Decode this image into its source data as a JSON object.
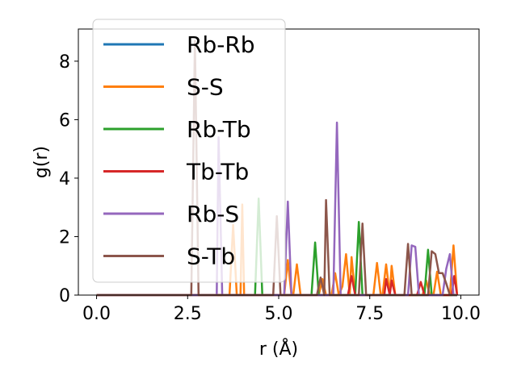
{
  "chart_data": {
    "type": "line",
    "xlabel": "r (Å)",
    "ylabel": "g(r)",
    "xlim": [
      -0.5,
      10.5
    ],
    "ylim": [
      0,
      9.1
    ],
    "xticks": [
      0.0,
      2.5,
      5.0,
      7.5,
      10.0
    ],
    "xtick_labels": [
      "0.0",
      "2.5",
      "5.0",
      "7.5",
      "10.0"
    ],
    "yticks": [
      0,
      2,
      4,
      6,
      8
    ],
    "ytick_labels": [
      "0",
      "2",
      "4",
      "6",
      "8"
    ],
    "grid": false,
    "legend_position": "upper-left",
    "series": [
      {
        "name": "Rb-Rb",
        "color": "#1f77b4",
        "points": [
          [
            0,
            0
          ],
          [
            9.9,
            0
          ]
        ]
      },
      {
        "name": "S-S",
        "color": "#ff7f0e",
        "points": [
          [
            0,
            0
          ],
          [
            3.65,
            0
          ],
          [
            3.75,
            2.4
          ],
          [
            3.85,
            0
          ],
          [
            3.95,
            0
          ],
          [
            4.0,
            3.1
          ],
          [
            4.05,
            0
          ],
          [
            5.15,
            0
          ],
          [
            5.25,
            1.2
          ],
          [
            5.35,
            0
          ],
          [
            5.4,
            0
          ],
          [
            5.5,
            1.05
          ],
          [
            5.6,
            0
          ],
          [
            6.1,
            0
          ],
          [
            6.2,
            0.55
          ],
          [
            6.3,
            0
          ],
          [
            6.45,
            0
          ],
          [
            6.55,
            0.75
          ],
          [
            6.65,
            0
          ],
          [
            6.75,
            0.3
          ],
          [
            6.85,
            1.4
          ],
          [
            6.95,
            0
          ],
          [
            7.0,
            1.3
          ],
          [
            7.1,
            0
          ],
          [
            7.6,
            0
          ],
          [
            7.7,
            1.1
          ],
          [
            7.8,
            0
          ],
          [
            7.85,
            0
          ],
          [
            7.95,
            1.05
          ],
          [
            8.05,
            0
          ],
          [
            8.1,
            1.0
          ],
          [
            8.2,
            0
          ],
          [
            8.95,
            0
          ],
          [
            9.05,
            0.5
          ],
          [
            9.15,
            0
          ],
          [
            9.25,
            0
          ],
          [
            9.35,
            0.8
          ],
          [
            9.45,
            0
          ],
          [
            9.7,
            0
          ],
          [
            9.8,
            1.7
          ],
          [
            9.9,
            0
          ]
        ]
      },
      {
        "name": "Rb-Tb",
        "color": "#2ca02c",
        "points": [
          [
            0,
            0
          ],
          [
            4.35,
            0
          ],
          [
            4.45,
            3.3
          ],
          [
            4.55,
            0
          ],
          [
            5.9,
            0
          ],
          [
            6.0,
            1.8
          ],
          [
            6.1,
            0
          ],
          [
            7.1,
            0
          ],
          [
            7.2,
            2.5
          ],
          [
            7.3,
            0
          ],
          [
            9.0,
            0
          ],
          [
            9.1,
            1.55
          ],
          [
            9.2,
            0
          ],
          [
            9.9,
            0
          ]
        ]
      },
      {
        "name": "Tb-Tb",
        "color": "#d62728",
        "points": [
          [
            0,
            0
          ],
          [
            6.9,
            0
          ],
          [
            7.0,
            0.65
          ],
          [
            7.1,
            0
          ],
          [
            7.9,
            0
          ],
          [
            7.95,
            0.55
          ],
          [
            8.05,
            0
          ],
          [
            8.1,
            0.5
          ],
          [
            8.2,
            0
          ],
          [
            8.8,
            0
          ],
          [
            8.9,
            0.45
          ],
          [
            9.0,
            0
          ],
          [
            9.75,
            0
          ],
          [
            9.82,
            0.65
          ],
          [
            9.9,
            0
          ]
        ]
      },
      {
        "name": "Rb-S",
        "color": "#9467bd",
        "points": [
          [
            0,
            0
          ],
          [
            3.3,
            0
          ],
          [
            3.35,
            5.4
          ],
          [
            3.45,
            0
          ],
          [
            5.15,
            0
          ],
          [
            5.25,
            3.2
          ],
          [
            5.35,
            0
          ],
          [
            6.5,
            0
          ],
          [
            6.6,
            5.9
          ],
          [
            6.7,
            0
          ],
          [
            8.55,
            0
          ],
          [
            8.65,
            1.7
          ],
          [
            8.75,
            1.65
          ],
          [
            8.85,
            0
          ],
          [
            9.5,
            0
          ],
          [
            9.6,
            0.9
          ],
          [
            9.7,
            1.4
          ],
          [
            9.8,
            0
          ],
          [
            9.9,
            0
          ]
        ]
      },
      {
        "name": "S-Tb",
        "color": "#8c564b",
        "points": [
          [
            0,
            0
          ],
          [
            2.6,
            0
          ],
          [
            2.7,
            8.7
          ],
          [
            2.8,
            0
          ],
          [
            4.85,
            0
          ],
          [
            4.95,
            2.7
          ],
          [
            5.05,
            0
          ],
          [
            6.05,
            0
          ],
          [
            6.15,
            0.6
          ],
          [
            6.25,
            0
          ],
          [
            6.3,
            3.25
          ],
          [
            6.4,
            0
          ],
          [
            7.2,
            0
          ],
          [
            7.3,
            2.45
          ],
          [
            7.4,
            0
          ],
          [
            8.45,
            0
          ],
          [
            8.55,
            1.75
          ],
          [
            8.65,
            0
          ],
          [
            9.1,
            0
          ],
          [
            9.2,
            1.5
          ],
          [
            9.3,
            1.4
          ],
          [
            9.4,
            0.75
          ],
          [
            9.5,
            0.75
          ],
          [
            9.6,
            0.4
          ],
          [
            9.7,
            0
          ],
          [
            9.9,
            0
          ]
        ]
      }
    ]
  }
}
